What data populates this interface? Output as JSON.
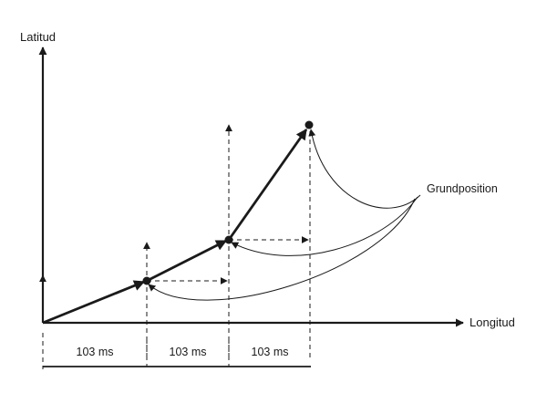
{
  "axes": {
    "y_label": "Latitud",
    "x_label": "Longitud"
  },
  "callout": {
    "label": "Grundposition"
  },
  "intervals": [
    {
      "label": "103 ms"
    },
    {
      "label": "103 ms"
    },
    {
      "label": "103 ms"
    }
  ],
  "colors": {
    "ink": "#1a1a1a",
    "background": "#ffffff"
  }
}
